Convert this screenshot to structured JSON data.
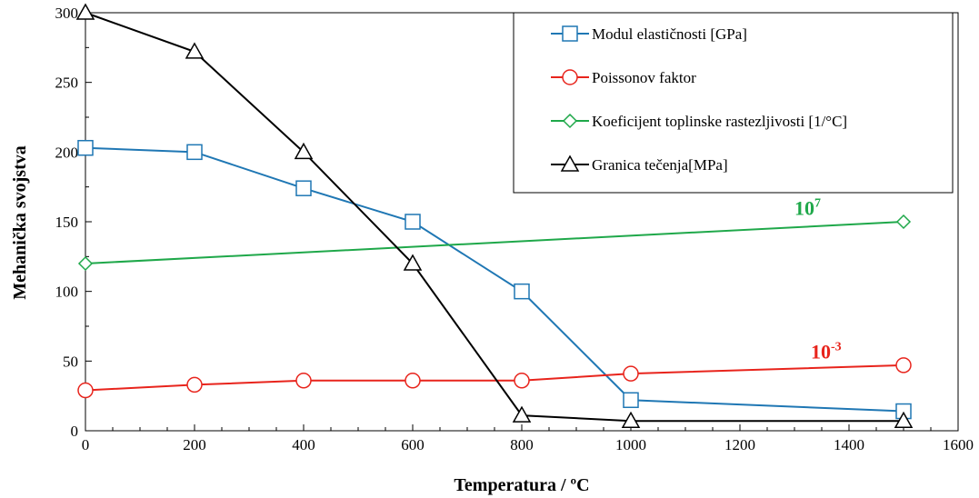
{
  "chart_data": {
    "type": "line",
    "xlabel": "Temperatura / ºC",
    "ylabel": "Mehanička svojstva",
    "xlim": [
      0,
      1600
    ],
    "ylim": [
      0,
      300
    ],
    "xticks": [
      0,
      200,
      400,
      600,
      800,
      1000,
      1200,
      1400,
      1600
    ],
    "yticks": [
      0,
      50,
      100,
      150,
      200,
      250,
      300
    ],
    "grid": false,
    "legend_position": "top-right",
    "series": [
      {
        "name": "Modul elastičnosti [GPa]",
        "color": "#1f77b4",
        "marker": "square",
        "x": [
          0,
          200,
          400,
          600,
          800,
          1000,
          1500
        ],
        "y": [
          203,
          200,
          174,
          150,
          100,
          22,
          14
        ]
      },
      {
        "name": "Poissonov faktor",
        "color": "#e8241c",
        "marker": "circle",
        "x": [
          0,
          200,
          400,
          600,
          800,
          1000,
          1500
        ],
        "y": [
          29,
          33,
          36,
          36,
          36,
          41,
          47
        ]
      },
      {
        "name": "Koeficijent toplinske rastezljivosti [1/°C]",
        "color": "#1fa84a",
        "marker": "diamond",
        "x": [
          0,
          1500
        ],
        "y": [
          120,
          150
        ]
      },
      {
        "name": "Granica tečenja[MPa]",
        "color": "#000000",
        "marker": "triangle",
        "x": [
          0,
          200,
          400,
          600,
          800,
          1000,
          1500
        ],
        "y": [
          300,
          272,
          200,
          120,
          11,
          7,
          7
        ]
      }
    ],
    "annotations": [
      {
        "base": "10",
        "exponent": "7",
        "color": "#1fa84a",
        "x": 1300,
        "y": 155
      },
      {
        "base": "10",
        "exponent": "-3",
        "color": "#e8241c",
        "x": 1330,
        "y": 52
      }
    ]
  }
}
